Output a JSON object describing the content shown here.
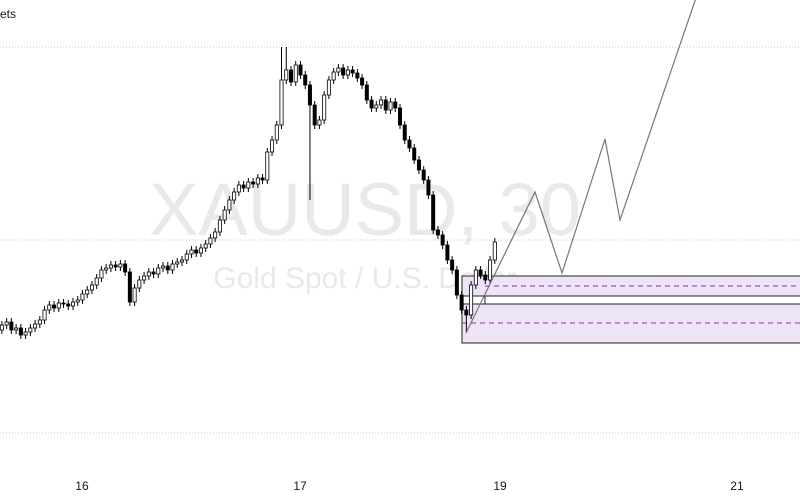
{
  "header": {
    "label": "ets"
  },
  "watermark": {
    "symbol": "XAUUSD, 30",
    "description": "Gold Spot / U.S. Dollar"
  },
  "chart_data": {
    "type": "candlestick",
    "xlim": [
      -0.4,
      168.4
    ],
    "ylim": [
      0,
      500
    ],
    "xticks": [
      {
        "value": 16.9,
        "label": "16"
      },
      {
        "value": 62.9,
        "label": "17"
      },
      {
        "value": 105.1,
        "label": "19"
      },
      {
        "value": 155.1,
        "label": "21"
      }
    ],
    "up_color": "#ffffff",
    "down_color": "#000000",
    "wick_color": "#000000",
    "open": [
      170,
      175,
      178,
      170,
      172,
      165,
      168,
      172,
      176,
      180,
      190,
      195,
      192,
      197,
      196,
      194,
      198,
      200,
      206,
      210,
      215,
      222,
      230,
      232,
      235,
      233,
      236,
      228,
      198,
      212,
      220,
      224,
      228,
      226,
      232,
      234,
      230,
      236,
      238,
      240,
      246,
      250,
      247,
      252,
      256,
      262,
      268,
      280,
      290,
      300,
      308,
      315,
      312,
      318,
      316,
      322,
      320,
      348,
      360,
      375,
      420,
      430,
      418,
      435,
      425,
      415,
      395,
      375,
      380,
      405,
      420,
      428,
      432,
      425,
      430,
      427,
      422,
      415,
      400,
      392,
      395,
      400,
      390,
      398,
      392,
      375,
      360,
      352,
      340,
      330,
      320,
      305,
      270,
      265,
      255,
      240,
      230,
      205,
      190,
      185,
      215,
      230,
      225,
      220,
      240
    ],
    "high": [
      179,
      182,
      182,
      176,
      176,
      172,
      176,
      180,
      184,
      194,
      199,
      199,
      201,
      201,
      200,
      202,
      204,
      210,
      214,
      219,
      226,
      234,
      236,
      239,
      239,
      240,
      240,
      232,
      216,
      224,
      228,
      232,
      232,
      236,
      238,
      238,
      240,
      242,
      244,
      250,
      254,
      254,
      256,
      260,
      266,
      272,
      284,
      294,
      304,
      312,
      319,
      319,
      322,
      322,
      326,
      326,
      352,
      364,
      379,
      453,
      453,
      434,
      439,
      439,
      429,
      419,
      399,
      384,
      409,
      424,
      432,
      436,
      436,
      434,
      434,
      431,
      426,
      419,
      404,
      399,
      404,
      404,
      402,
      402,
      396,
      379,
      364,
      356,
      344,
      334,
      324,
      309,
      274,
      269,
      259,
      244,
      234,
      209,
      194,
      219,
      234,
      234,
      229,
      244,
      262
    ],
    "low": [
      166,
      171,
      166,
      166,
      161,
      161,
      164,
      168,
      172,
      176,
      186,
      188,
      188,
      192,
      190,
      190,
      194,
      196,
      202,
      206,
      211,
      218,
      226,
      228,
      229,
      229,
      224,
      194,
      194,
      208,
      216,
      220,
      222,
      222,
      228,
      226,
      226,
      232,
      234,
      236,
      242,
      243,
      243,
      248,
      252,
      258,
      264,
      276,
      286,
      296,
      304,
      308,
      308,
      312,
      312,
      316,
      316,
      344,
      356,
      371,
      416,
      414,
      414,
      421,
      411,
      300,
      371,
      371,
      376,
      401,
      416,
      424,
      421,
      421,
      423,
      418,
      411,
      396,
      388,
      388,
      391,
      386,
      386,
      388,
      371,
      356,
      348,
      336,
      326,
      316,
      301,
      266,
      261,
      251,
      236,
      226,
      201,
      186,
      167,
      181,
      211,
      221,
      216,
      216,
      236
    ],
    "close": [
      175,
      178,
      170,
      172,
      165,
      168,
      172,
      176,
      180,
      190,
      195,
      192,
      197,
      196,
      194,
      198,
      200,
      206,
      210,
      215,
      222,
      230,
      232,
      235,
      233,
      236,
      228,
      198,
      212,
      220,
      224,
      228,
      226,
      232,
      234,
      230,
      236,
      238,
      240,
      246,
      250,
      247,
      252,
      256,
      262,
      268,
      280,
      290,
      300,
      308,
      315,
      312,
      318,
      316,
      322,
      320,
      348,
      360,
      375,
      420,
      430,
      418,
      435,
      425,
      415,
      395,
      375,
      380,
      405,
      420,
      428,
      432,
      425,
      430,
      427,
      422,
      415,
      400,
      392,
      395,
      400,
      390,
      398,
      392,
      375,
      360,
      352,
      340,
      330,
      320,
      305,
      270,
      265,
      255,
      240,
      230,
      205,
      190,
      185,
      215,
      230,
      225,
      220,
      240,
      258
    ]
  }
}
